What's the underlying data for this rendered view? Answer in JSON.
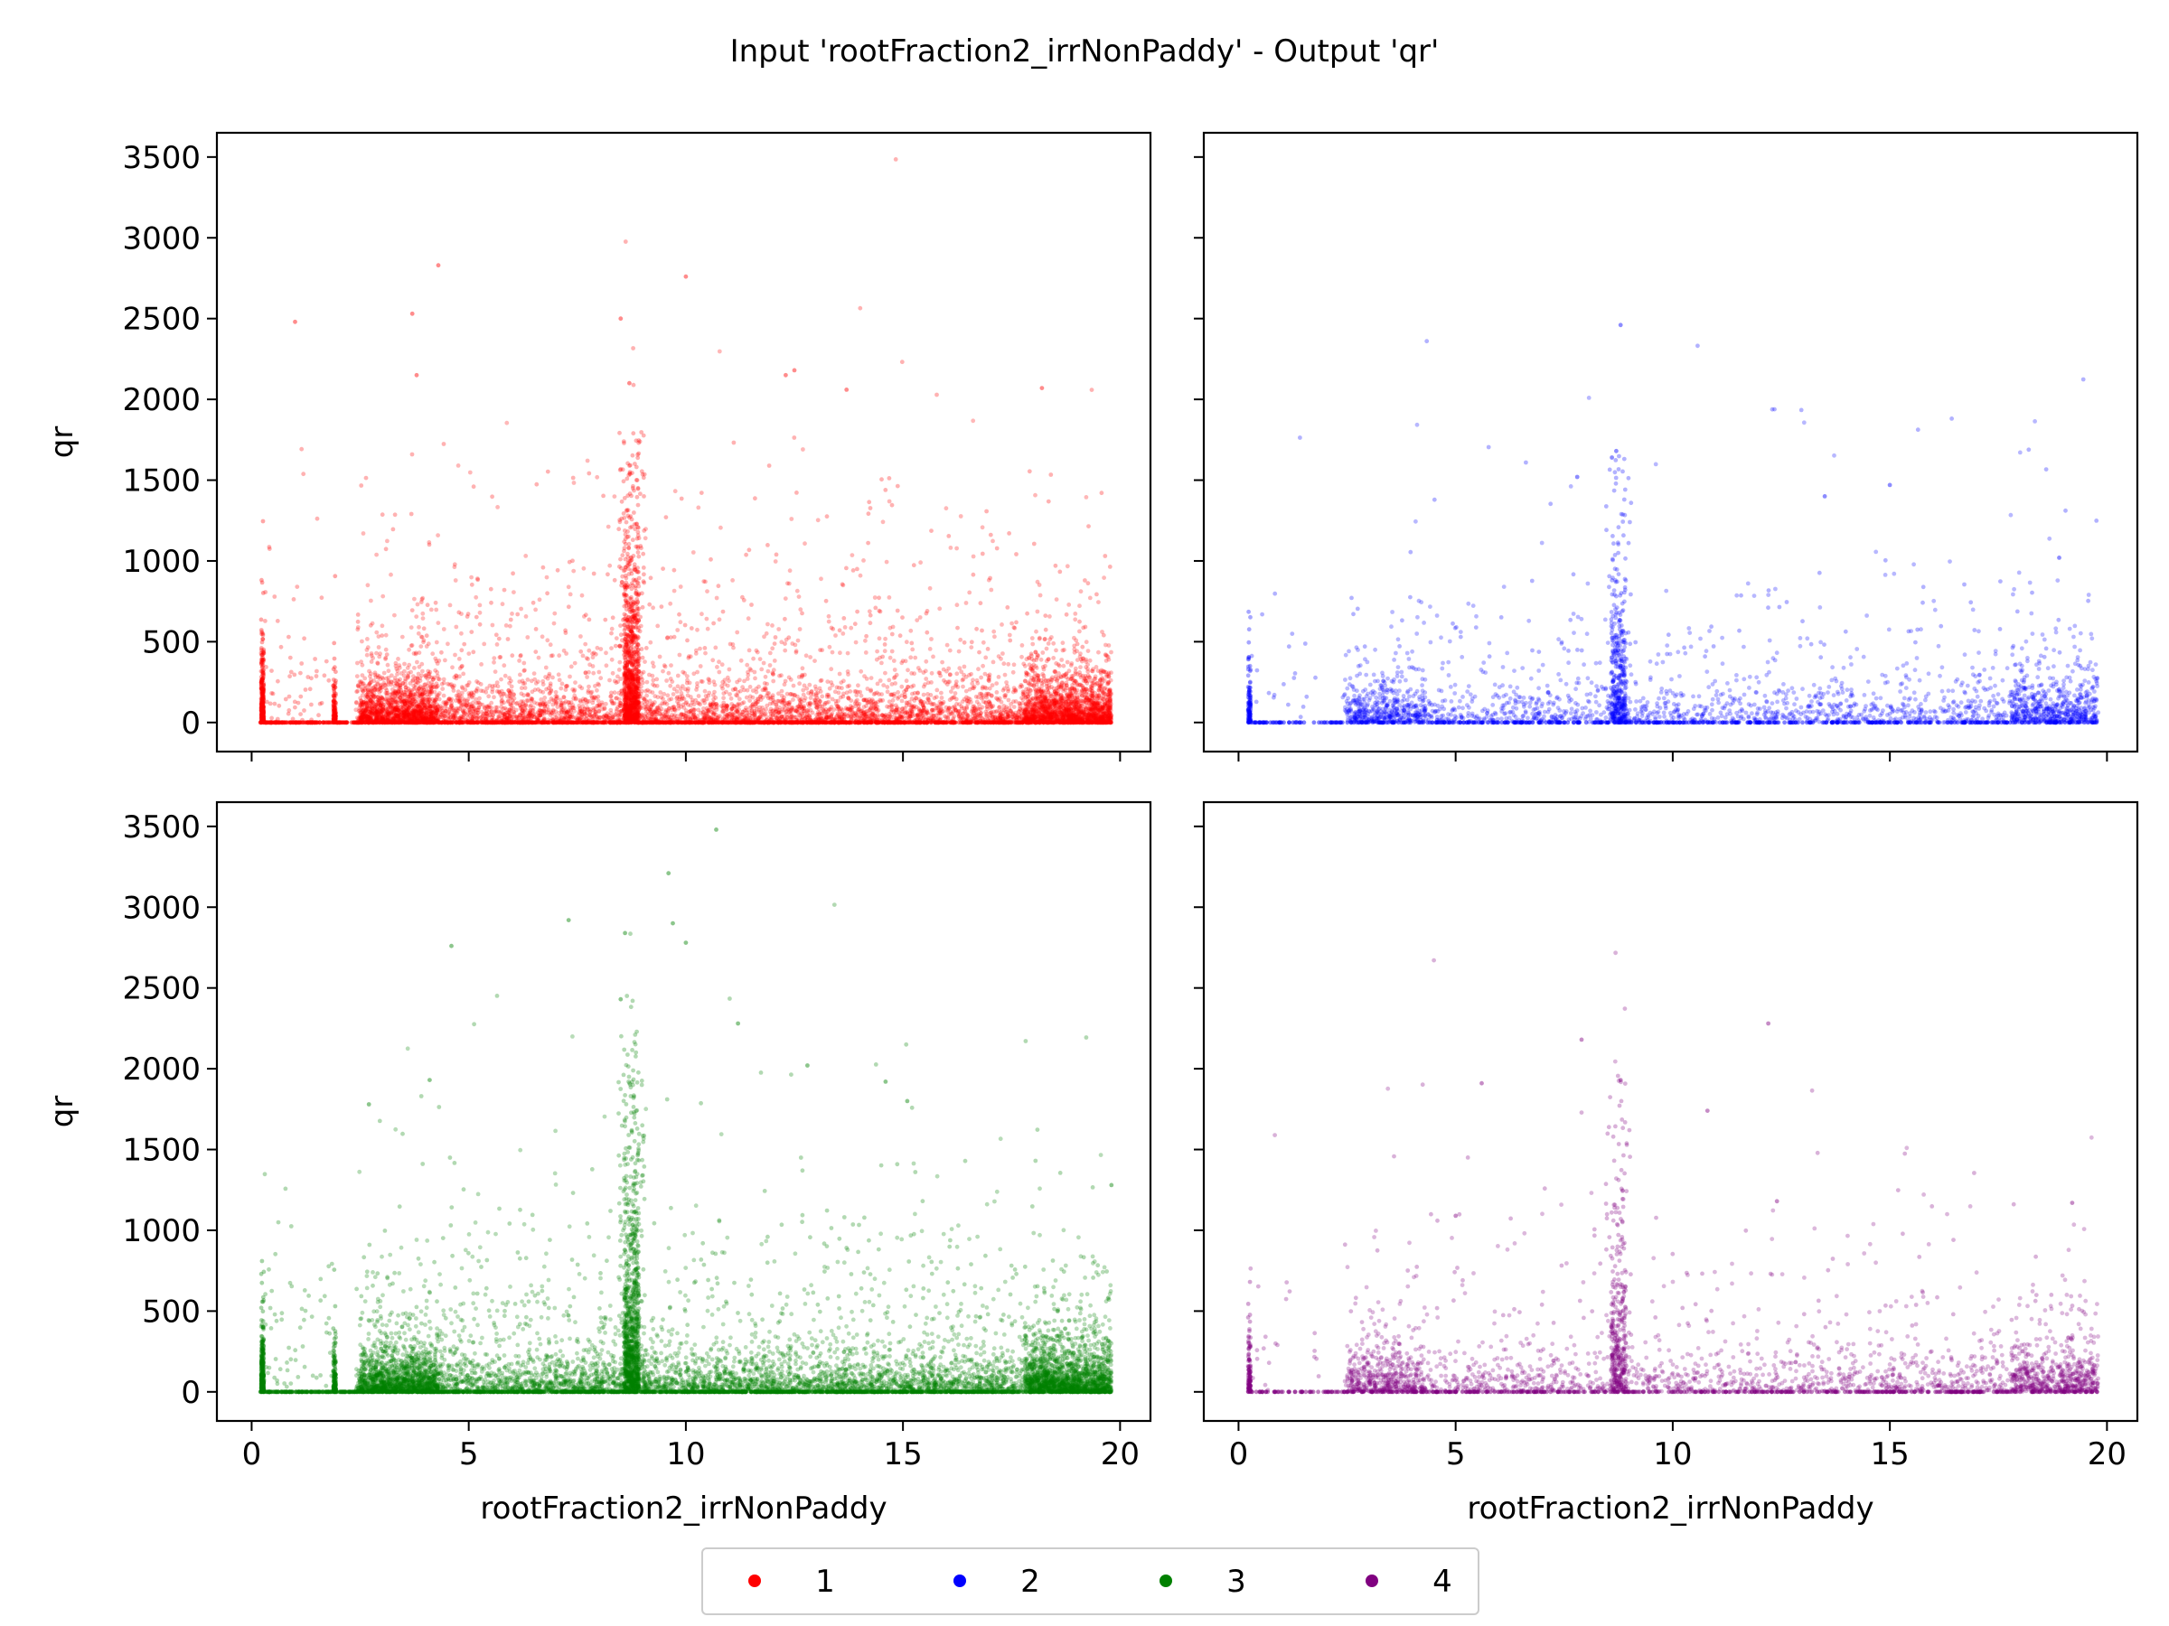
{
  "figure": {
    "title": "Input 'rootFraction2_irrNonPaddy' - Output 'qr'"
  },
  "legend": {
    "placement": "bottom-center",
    "items": [
      {
        "label": "1",
        "color": "#ff0000"
      },
      {
        "label": "2",
        "color": "#0000ff"
      },
      {
        "label": "3",
        "color": "#008000"
      },
      {
        "label": "4",
        "color": "#800080"
      }
    ]
  },
  "chart_data": [
    {
      "type": "scatter",
      "panel": "top-left",
      "series_name": "1",
      "color": "#ff0000",
      "xlabel": "",
      "ylabel": "qr",
      "xlim": [
        -0.8,
        20.7
      ],
      "ylim": [
        -180,
        3650
      ],
      "xticks": [
        0,
        5,
        10,
        15,
        20
      ],
      "yticks": [
        0,
        500,
        1000,
        1500,
        2000,
        2500,
        3000,
        3500
      ],
      "show_xtick_labels": false,
      "show_ytick_labels": true,
      "x_range": [
        0.2,
        19.8
      ],
      "approx_max_y": 2830,
      "density": 1.0,
      "spike_x": 8.75,
      "spike_height": 1800,
      "outliers": [
        [
          4.3,
          2830
        ],
        [
          10,
          2760
        ],
        [
          3.7,
          2530
        ],
        [
          8.5,
          2500
        ],
        [
          1,
          2480
        ],
        [
          12.5,
          2180
        ],
        [
          12.3,
          2150
        ],
        [
          3.8,
          2150
        ],
        [
          18.2,
          2070
        ],
        [
          13.7,
          2060
        ],
        [
          8.7,
          2100
        ]
      ]
    },
    {
      "type": "scatter",
      "panel": "top-right",
      "series_name": "2",
      "color": "#0000ff",
      "xlabel": "",
      "ylabel": "",
      "xlim": [
        -0.8,
        20.7
      ],
      "ylim": [
        -180,
        3650
      ],
      "xticks": [
        0,
        5,
        10,
        15,
        20
      ],
      "yticks": [
        0,
        500,
        1000,
        1500,
        2000,
        2500,
        3000,
        3500
      ],
      "show_xtick_labels": false,
      "show_ytick_labels": false,
      "x_range": [
        0.2,
        19.8
      ],
      "approx_max_y": 2460,
      "density": 0.35,
      "spike_x": 8.75,
      "spike_height": 1650,
      "outliers": [
        [
          8.8,
          2460
        ],
        [
          8.7,
          1680
        ],
        [
          8.6,
          1640
        ],
        [
          15,
          1470
        ],
        [
          13.5,
          1400
        ],
        [
          7.8,
          1520
        ],
        [
          18.9,
          1020
        ]
      ]
    },
    {
      "type": "scatter",
      "panel": "bottom-left",
      "series_name": "3",
      "color": "#008000",
      "xlabel": "rootFraction2_irrNonPaddy",
      "ylabel": "qr",
      "xlim": [
        -0.8,
        20.7
      ],
      "ylim": [
        -180,
        3650
      ],
      "xticks": [
        0,
        5,
        10,
        15,
        20
      ],
      "yticks": [
        0,
        500,
        1000,
        1500,
        2000,
        2500,
        3000,
        3500
      ],
      "show_xtick_labels": true,
      "show_ytick_labels": true,
      "x_range": [
        0.2,
        19.8
      ],
      "approx_max_y": 3480,
      "density": 1.0,
      "spike_x": 8.75,
      "spike_height": 2250,
      "outliers": [
        [
          10.7,
          3480
        ],
        [
          9.6,
          3210
        ],
        [
          7.3,
          2920
        ],
        [
          9.7,
          2900
        ],
        [
          8.6,
          2840
        ],
        [
          4.6,
          2760
        ],
        [
          10.0,
          2780
        ],
        [
          11.2,
          2280
        ],
        [
          8.5,
          2430
        ],
        [
          12.8,
          2020
        ],
        [
          14.6,
          1920
        ],
        [
          4.1,
          1930
        ],
        [
          15.1,
          1800
        ],
        [
          2.7,
          1780
        ],
        [
          19.8,
          1280
        ]
      ]
    },
    {
      "type": "scatter",
      "panel": "bottom-right",
      "series_name": "4",
      "color": "#800080",
      "xlabel": "rootFraction2_irrNonPaddy",
      "ylabel": "",
      "xlim": [
        -0.8,
        20.7
      ],
      "ylim": [
        -180,
        3650
      ],
      "xticks": [
        0,
        5,
        10,
        15,
        20
      ],
      "yticks": [
        0,
        500,
        1000,
        1500,
        2000,
        2500,
        3000,
        3500
      ],
      "show_xtick_labels": true,
      "show_ytick_labels": false,
      "x_range": [
        0.2,
        19.8
      ],
      "approx_max_y": 2280,
      "density": 0.35,
      "spike_x": 8.75,
      "spike_height": 1950,
      "outliers": [
        [
          12.2,
          2280
        ],
        [
          7.9,
          2180
        ],
        [
          5.6,
          1910
        ],
        [
          8.8,
          1930
        ],
        [
          10.8,
          1740
        ],
        [
          12.4,
          1180
        ],
        [
          19.2,
          1170
        ],
        [
          5.0,
          1090
        ]
      ]
    }
  ]
}
